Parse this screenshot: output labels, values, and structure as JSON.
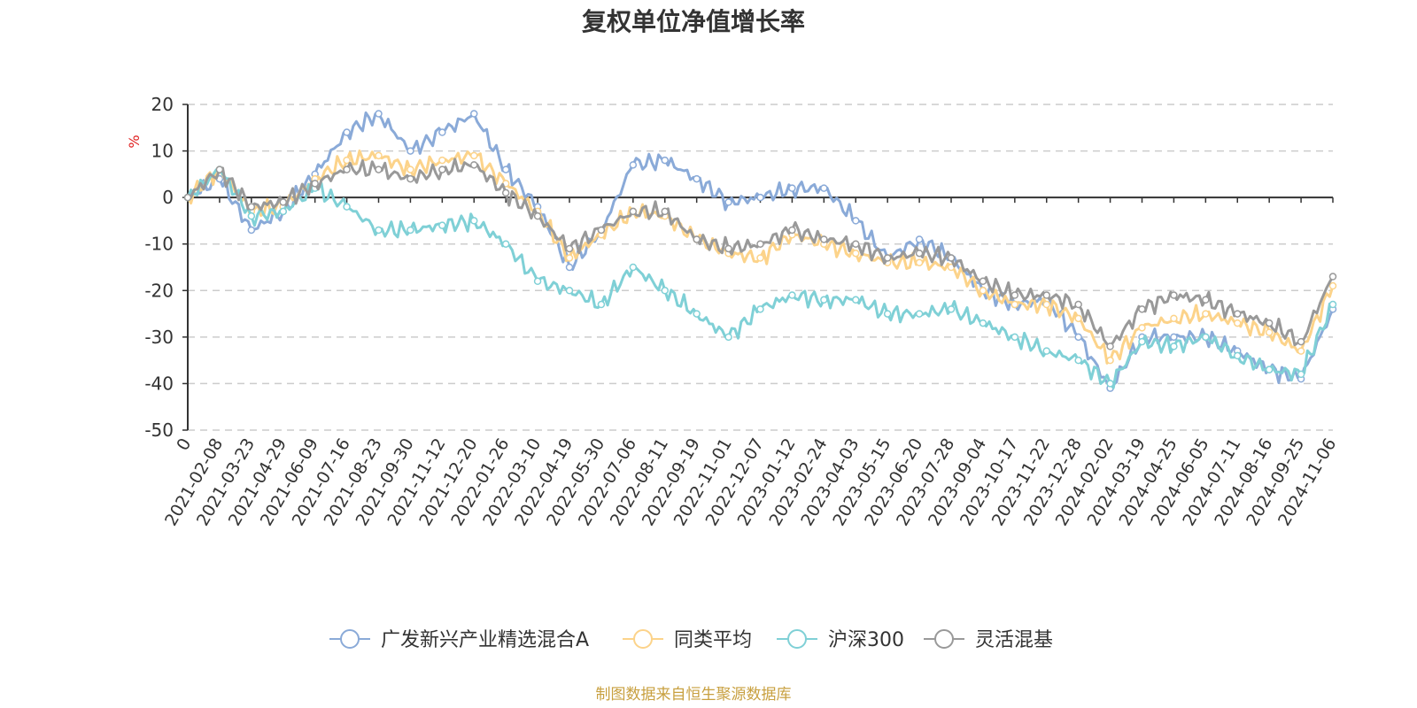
{
  "chart_data": {
    "type": "line",
    "title": "复权单位净值增长率",
    "ylabel": "%",
    "ylim": [
      -50,
      20
    ],
    "yticks": [
      20,
      10,
      0,
      -10,
      -20,
      -30,
      -40,
      -50
    ],
    "xlabel": "",
    "categories": [
      "0",
      "2021-02-08",
      "2021-03-23",
      "2021-04-29",
      "2021-06-09",
      "2021-07-16",
      "2021-08-23",
      "2021-09-30",
      "2021-11-12",
      "2021-12-20",
      "2022-01-26",
      "2022-03-10",
      "2022-04-19",
      "2022-05-30",
      "2022-07-06",
      "2022-08-11",
      "2022-09-19",
      "2022-11-01",
      "2022-12-07",
      "2023-01-12",
      "2023-02-24",
      "2023-04-03",
      "2023-05-15",
      "2023-06-20",
      "2023-07-28",
      "2023-09-04",
      "2023-10-17",
      "2023-11-22",
      "2023-12-28",
      "2024-02-02",
      "2024-03-19",
      "2024-04-25",
      "2024-06-05",
      "2024-07-11",
      "2024-08-16",
      "2024-09-25",
      "2024-11-06"
    ],
    "grid": true,
    "legend_position": "bottom",
    "series": [
      {
        "name": "广发新兴产业精选混合A",
        "color": "#8aaad8",
        "values": [
          0,
          4,
          -7,
          -3,
          5,
          14,
          18,
          10,
          14,
          18,
          6,
          -2,
          -15,
          -7,
          7,
          8,
          4,
          -1,
          0,
          2,
          2,
          -5,
          -13,
          -9,
          -13,
          -20,
          -23,
          -22,
          -30,
          -41,
          -30,
          -30,
          -30,
          -33,
          -37,
          -39,
          -24
        ]
      },
      {
        "name": "同类平均",
        "color": "#fcd38a",
        "values": [
          0,
          6,
          -3,
          -2,
          4,
          8,
          9,
          6,
          8,
          9,
          3,
          -3,
          -13,
          -8,
          -3,
          -4,
          -9,
          -12,
          -13,
          -8,
          -10,
          -12,
          -14,
          -14,
          -15,
          -20,
          -23,
          -23,
          -26,
          -35,
          -28,
          -26,
          -25,
          -27,
          -29,
          -33,
          -19
        ]
      },
      {
        "name": "沪深300",
        "color": "#7fd0d6",
        "values": [
          0,
          6,
          -4,
          -3,
          2,
          -2,
          -7,
          -7,
          -6,
          -5,
          -10,
          -18,
          -20,
          -23,
          -15,
          -20,
          -25,
          -30,
          -24,
          -21,
          -22,
          -22,
          -25,
          -25,
          -24,
          -27,
          -30,
          -33,
          -35,
          -40,
          -31,
          -32,
          -30,
          -34,
          -37,
          -38,
          -23
        ]
      },
      {
        "name": "灵活混基",
        "color": "#999999",
        "values": [
          0,
          6,
          -2,
          -1,
          3,
          6,
          6,
          4,
          6,
          7,
          1,
          -4,
          -11,
          -7,
          -3,
          -3,
          -9,
          -11,
          -10,
          -7,
          -9,
          -10,
          -13,
          -12,
          -13,
          -18,
          -21,
          -21,
          -23,
          -32,
          -24,
          -21,
          -22,
          -25,
          -27,
          -31,
          -17
        ]
      }
    ]
  },
  "source_note": "制图数据来自恒生聚源数据库"
}
